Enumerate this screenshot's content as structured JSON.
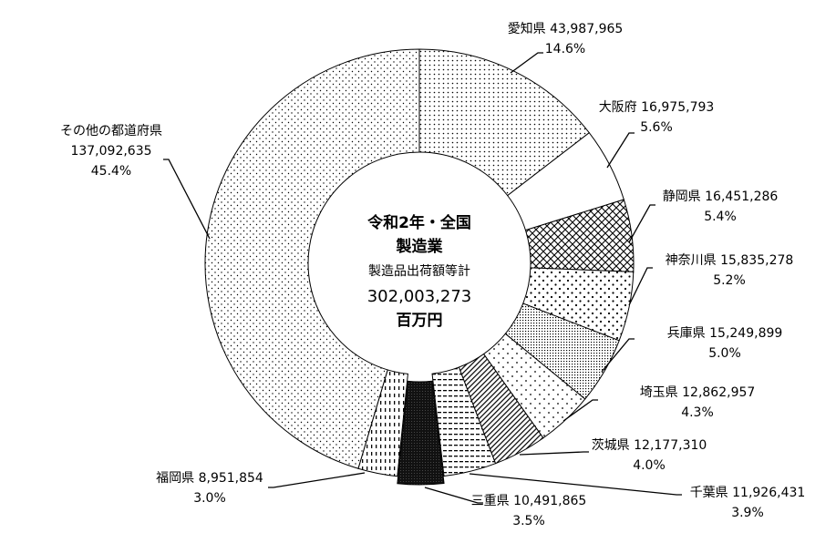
{
  "chart_data": {
    "type": "pie",
    "style": "donut",
    "center_text": {
      "line1": "令和2年・全国",
      "line2": "製造業",
      "line3": "製造品出荷額等計",
      "total": "302,003,273",
      "unit": "百万円"
    },
    "slices": [
      {
        "name": "愛知県",
        "value": 43987965,
        "value_label": "43,987,965",
        "percent": "14.6%",
        "pattern": "dots-dense"
      },
      {
        "name": "大阪府",
        "value": 16975793,
        "value_label": "16,975,793",
        "percent": "5.6%",
        "pattern": "blank"
      },
      {
        "name": "静岡県",
        "value": 16451286,
        "value_label": "16,451,286",
        "percent": "5.4%",
        "pattern": "crosshatch"
      },
      {
        "name": "神奈川県",
        "value": 15835278,
        "value_label": "15,835,278",
        "percent": "5.2%",
        "pattern": "dots-large"
      },
      {
        "name": "兵庫県",
        "value": 15249899,
        "value_label": "15,249,899",
        "percent": "5.0%",
        "pattern": "stipple-dense"
      },
      {
        "name": "埼玉県",
        "value": 12862957,
        "value_label": "12,862,957",
        "percent": "4.3%",
        "pattern": "dots-sparse"
      },
      {
        "name": "茨城県",
        "value": 12177310,
        "value_label": "12,177,310",
        "percent": "4.0%",
        "pattern": "diagonal-dots"
      },
      {
        "name": "千葉県",
        "value": 11926431,
        "value_label": "11,926,431",
        "percent": "3.9%",
        "pattern": "horizontal-dashes"
      },
      {
        "name": "三重県",
        "value": 10491865,
        "value_label": "10,491,865",
        "percent": "3.5%",
        "pattern": "dark-solid"
      },
      {
        "name": "福岡県",
        "value": 8951854,
        "value_label": "8,951,854",
        "percent": "3.0%",
        "pattern": "vertical-dashes"
      },
      {
        "name": "その他の都道府県",
        "value": 137092635,
        "value_label": "137,092,635",
        "percent": "45.4%",
        "pattern": "dots-fine"
      }
    ],
    "legend": "none",
    "labels": "outside-with-leader-lines"
  }
}
